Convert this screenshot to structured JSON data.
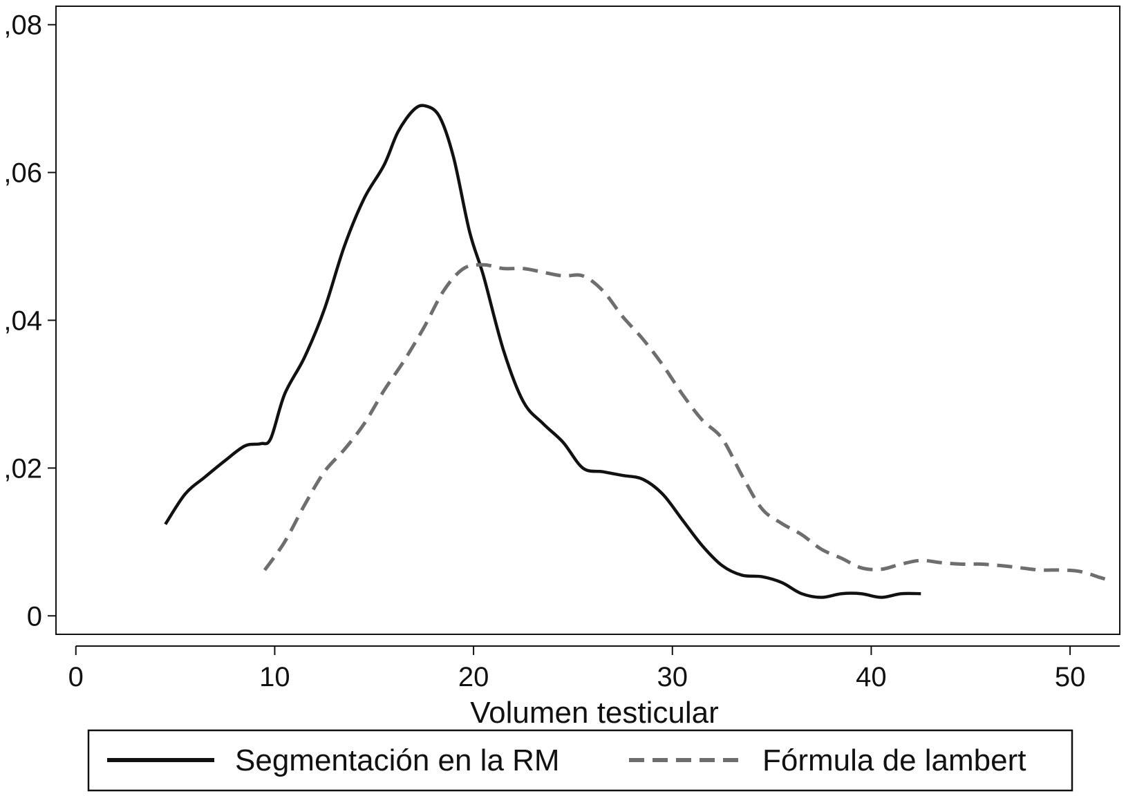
{
  "chart_data": {
    "type": "line",
    "title": "",
    "xlabel": "Volumen testicular",
    "ylabel": "",
    "xlim": [
      -1,
      52.5
    ],
    "ylim": [
      -0.0025,
      0.0825
    ],
    "x_ticks": [
      0,
      10,
      20,
      30,
      40,
      50
    ],
    "x_tick_labels": [
      "0",
      "10",
      "20",
      "30",
      "40",
      "50"
    ],
    "y_ticks": [
      0,
      0.02,
      0.04,
      0.06,
      0.08
    ],
    "y_tick_labels": [
      "0",
      ",02",
      ",04",
      ",06",
      ",08"
    ],
    "grid": false,
    "legend": {
      "position": "bottom"
    },
    "series": [
      {
        "name": "Segmentación en la RM",
        "color": "#111111",
        "dash": "solid",
        "x": [
          4.5,
          5.5,
          6.5,
          7.5,
          8.5,
          9.3,
          9.8,
          10.5,
          11.5,
          12.5,
          13.5,
          14.5,
          15.5,
          16.2,
          17.0,
          17.6,
          18.3,
          19.0,
          19.8,
          20.5,
          21.5,
          22.5,
          23.5,
          24.5,
          25.5,
          26.5,
          27.5,
          28.5,
          29.5,
          30.5,
          31.5,
          32.5,
          33.5,
          34.5,
          35.5,
          36.5,
          37.5,
          38.5,
          39.5,
          40.5,
          41.5,
          42.5
        ],
        "y": [
          0.0124,
          0.0165,
          0.0188,
          0.021,
          0.023,
          0.0233,
          0.024,
          0.03,
          0.035,
          0.0415,
          0.05,
          0.0565,
          0.061,
          0.0655,
          0.0685,
          0.069,
          0.0675,
          0.062,
          0.052,
          0.046,
          0.036,
          0.029,
          0.026,
          0.0235,
          0.02,
          0.0195,
          0.019,
          0.0185,
          0.0165,
          0.013,
          0.0095,
          0.0068,
          0.0055,
          0.0053,
          0.0045,
          0.003,
          0.0025,
          0.003,
          0.003,
          0.0025,
          0.003,
          0.003
        ]
      },
      {
        "name": "Fórmula de lambert",
        "color": "#6e6e6e",
        "dash": "dashed",
        "x": [
          9.5,
          10.5,
          11.5,
          12.5,
          13.5,
          14.5,
          15.5,
          16.5,
          17.5,
          18.5,
          19.5,
          20.5,
          21.5,
          22.5,
          23.5,
          24.5,
          25.5,
          26.5,
          27.5,
          28.5,
          29.5,
          30.5,
          31.5,
          32.5,
          33.5,
          34.5,
          35.5,
          36.5,
          37.5,
          38.5,
          39.5,
          40.5,
          41.5,
          42.5,
          43.5,
          44.5,
          45.5,
          46.5,
          47.5,
          48.5,
          49.5,
          50.5,
          51.5,
          52.0
        ],
        "y": [
          0.0062,
          0.01,
          0.015,
          0.0195,
          0.0225,
          0.026,
          0.0305,
          0.0345,
          0.039,
          0.044,
          0.047,
          0.0475,
          0.047,
          0.047,
          0.0465,
          0.046,
          0.046,
          0.044,
          0.0405,
          0.0375,
          0.034,
          0.03,
          0.0265,
          0.024,
          0.019,
          0.0145,
          0.0125,
          0.011,
          0.009,
          0.0078,
          0.0065,
          0.0063,
          0.007,
          0.0075,
          0.0072,
          0.007,
          0.007,
          0.0068,
          0.0065,
          0.0062,
          0.0062,
          0.006,
          0.0052,
          0.0048
        ]
      }
    ]
  }
}
